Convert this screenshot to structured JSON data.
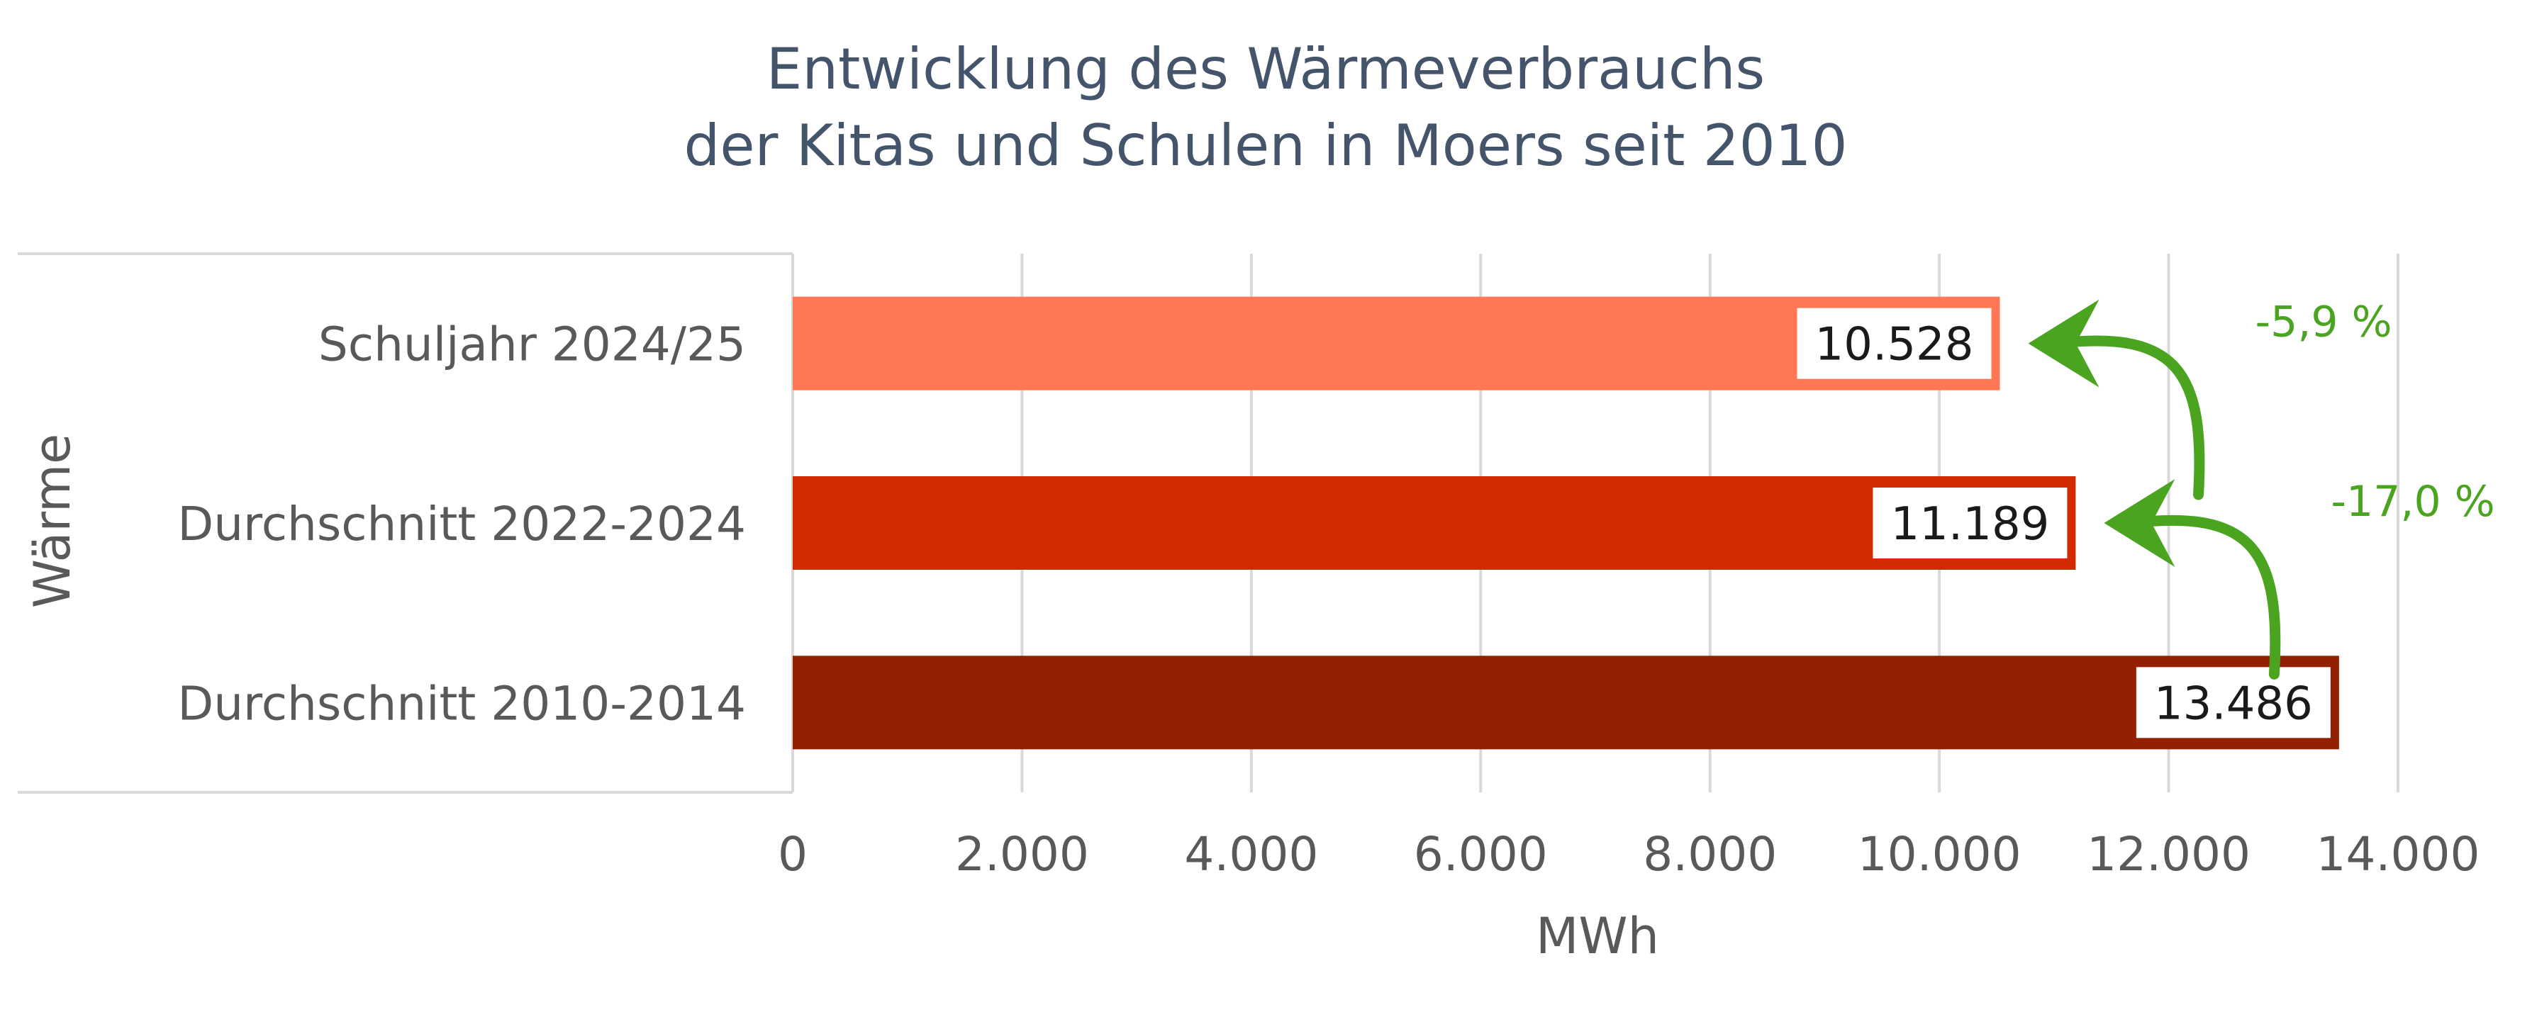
{
  "title_lines": [
    "Entwicklung des Wärmeverbrauchs",
    "der Kitas und Schulen in Moers seit 2010"
  ],
  "chart_data": {
    "type": "bar",
    "orientation": "horizontal",
    "group_label": "Wärme",
    "categories": [
      "Schuljahr 2024/25",
      "Durchschnitt 2022-2024",
      "Durchschnitt 2010-2014"
    ],
    "values": [
      10528,
      11189,
      13486
    ],
    "value_labels": [
      "10.528",
      "11.189",
      "13.486"
    ],
    "colors": [
      "#ff7755",
      "#d42a04",
      "#942002"
    ],
    "xlabel": "MWh",
    "xlim": [
      0,
      14000
    ],
    "xticks": [
      0,
      2000,
      4000,
      6000,
      8000,
      10000,
      12000,
      14000
    ],
    "xtick_labels": [
      "0",
      "2.000",
      "4.000",
      "6.000",
      "8.000",
      "10.000",
      "12.000",
      "14.000"
    ],
    "grid": true,
    "annotations": [
      {
        "text": "-5,9 %",
        "from": "Durchschnitt 2022-2024",
        "to": "Schuljahr 2024/25",
        "color": "#4aa41f"
      },
      {
        "text": "-17,0 %",
        "from": "Durchschnitt 2010-2014",
        "to": "Durchschnitt 2022-2024",
        "color": "#4aa41f"
      }
    ]
  }
}
